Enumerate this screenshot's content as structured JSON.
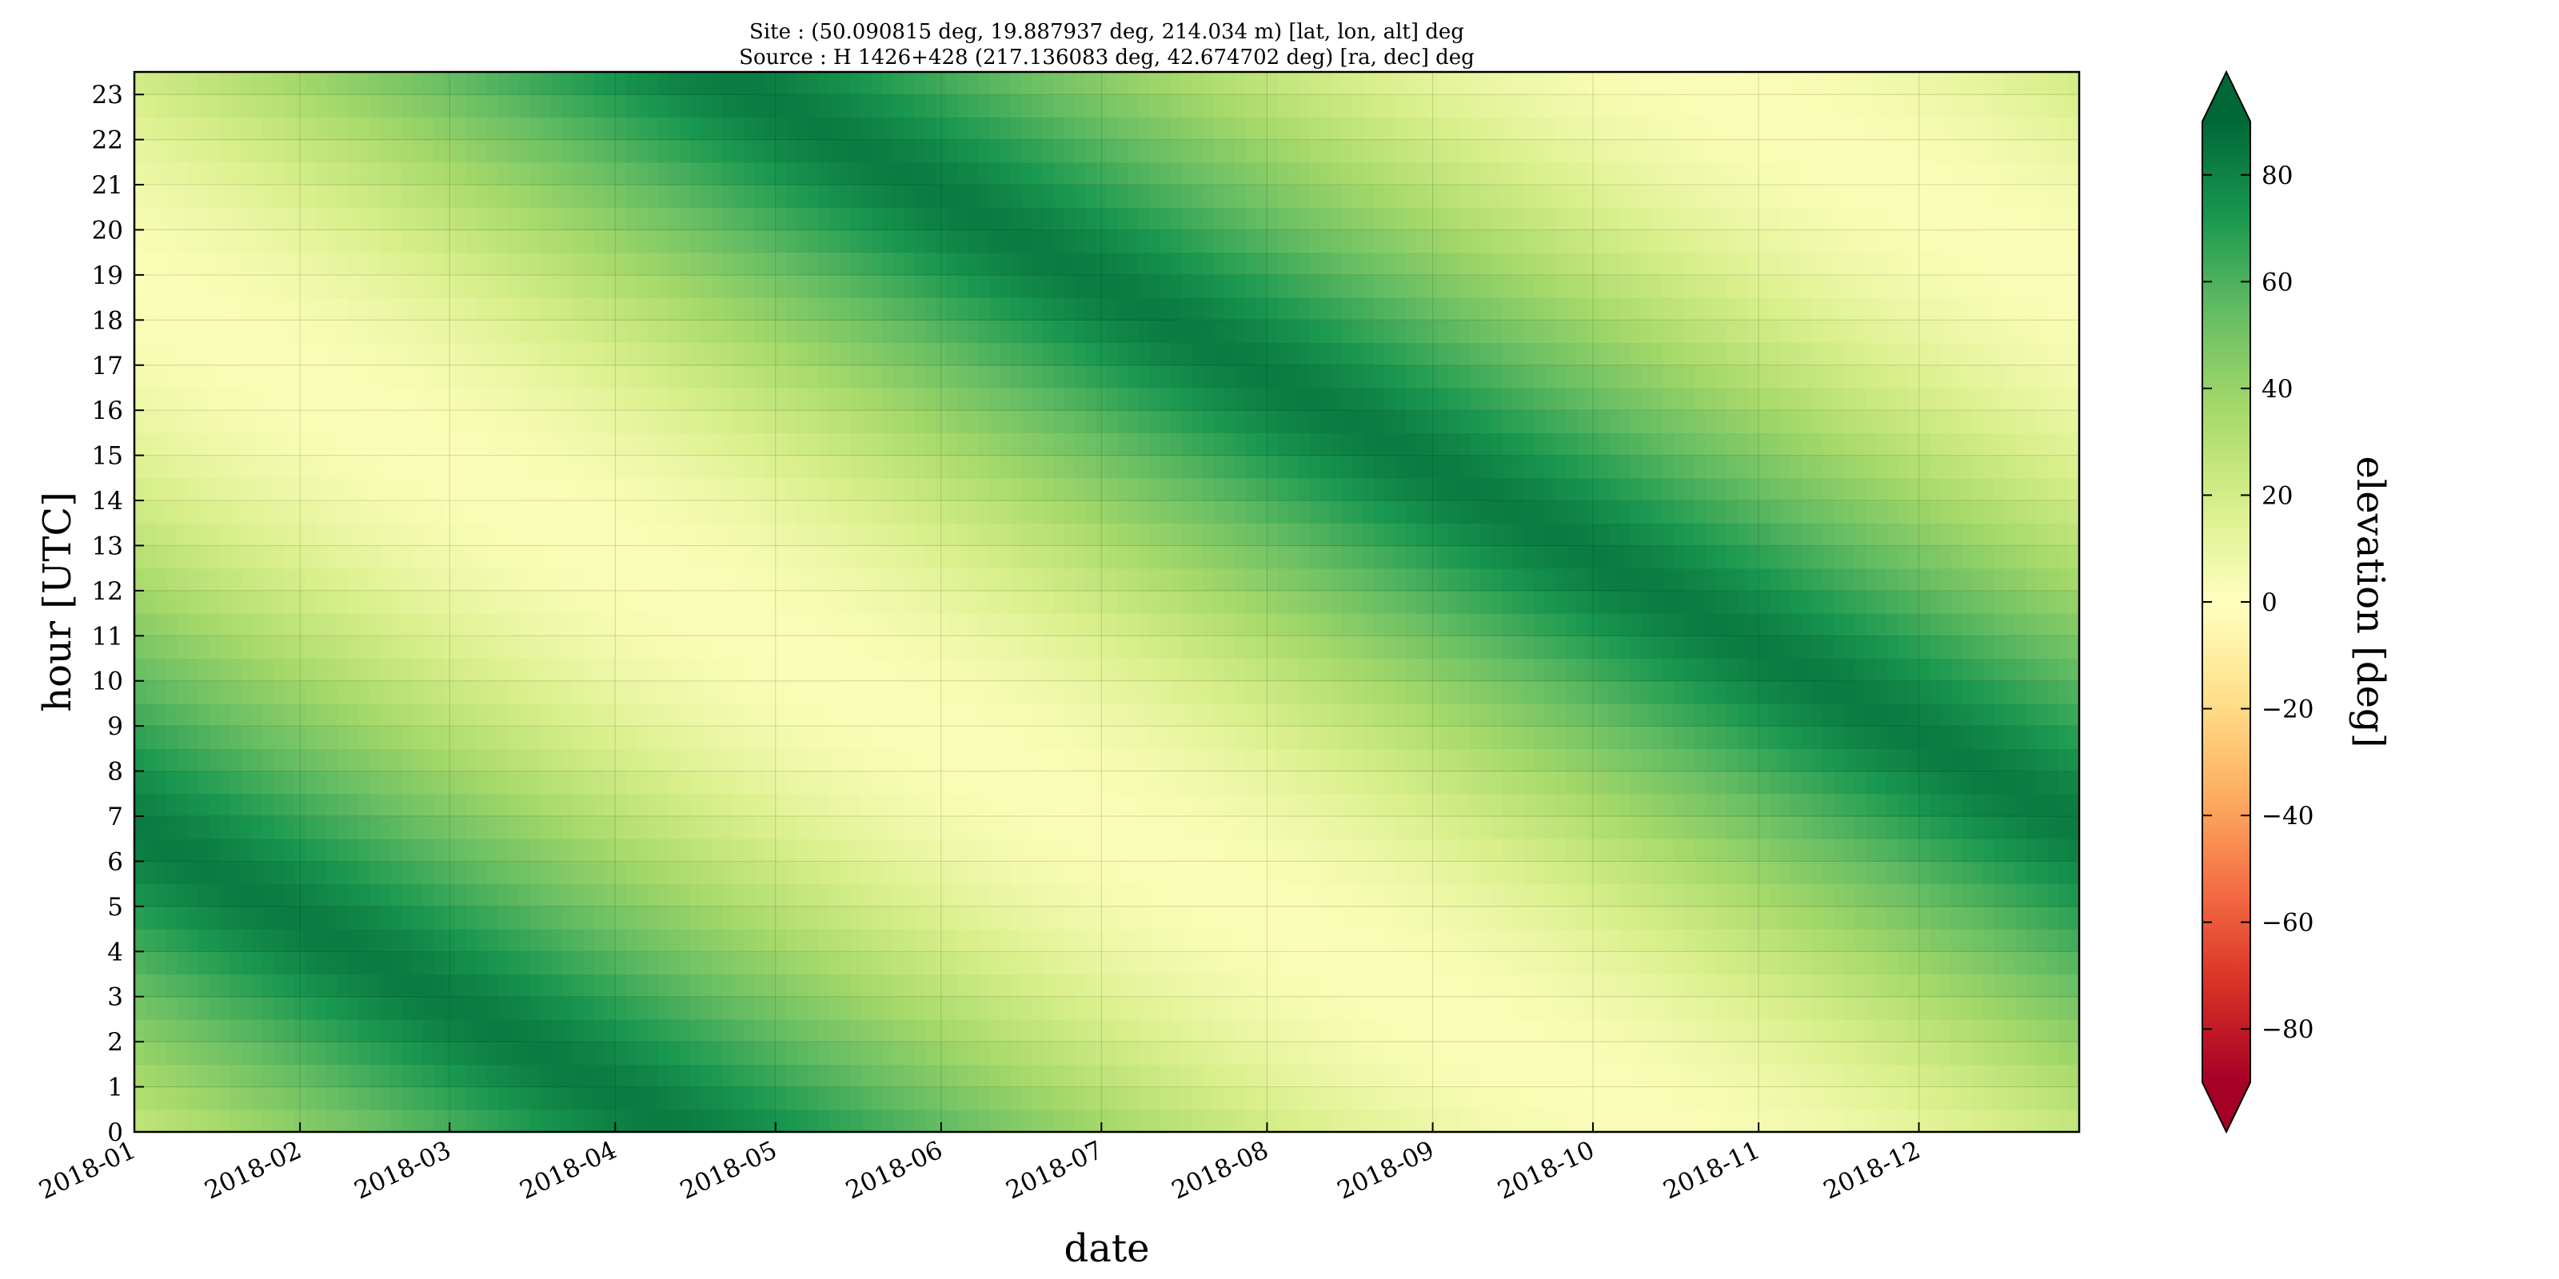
{
  "chart_data": {
    "type": "heatmap",
    "title_lines": [
      "Site : (50.090815 deg, 19.887937 deg, 214.034 m) [lat, lon, alt] deg",
      "Source : H 1426+428 (217.136083 deg, 42.674702 deg) [ra, dec] deg"
    ],
    "xlabel": "date",
    "ylabel": "hour [UTC]",
    "x_tick_labels": [
      "2018-01",
      "2018-02",
      "2018-03",
      "2018-04",
      "2018-05",
      "2018-06",
      "2018-07",
      "2018-08",
      "2018-09",
      "2018-10",
      "2018-11",
      "2018-12"
    ],
    "x_tick_days": [
      0,
      31,
      59,
      90,
      120,
      151,
      181,
      212,
      243,
      273,
      304,
      334
    ],
    "x_range_days": [
      0,
      364
    ],
    "y_tick_labels": [
      "0",
      "1",
      "2",
      "3",
      "4",
      "5",
      "6",
      "7",
      "8",
      "9",
      "10",
      "11",
      "12",
      "13",
      "14",
      "15",
      "16",
      "17",
      "18",
      "19",
      "20",
      "21",
      "22",
      "23"
    ],
    "y_range": [
      0,
      23.5
    ],
    "grid": true,
    "colormap": "RdYlGn",
    "colorbar": {
      "label": "elevation [deg]",
      "range": [
        -90,
        90
      ],
      "ticks": [
        -80,
        -60,
        -40,
        -20,
        0,
        20,
        40,
        60,
        80
      ],
      "extend": "both"
    },
    "source_coords": {
      "ra_deg": 217.136083,
      "dec_deg": 42.674702
    },
    "site_coords": {
      "lat_deg": 50.090815,
      "lon_deg": 19.887937
    },
    "value_model": "elevation of source at site (deg) for each day of 2018 and each UTC hour"
  }
}
